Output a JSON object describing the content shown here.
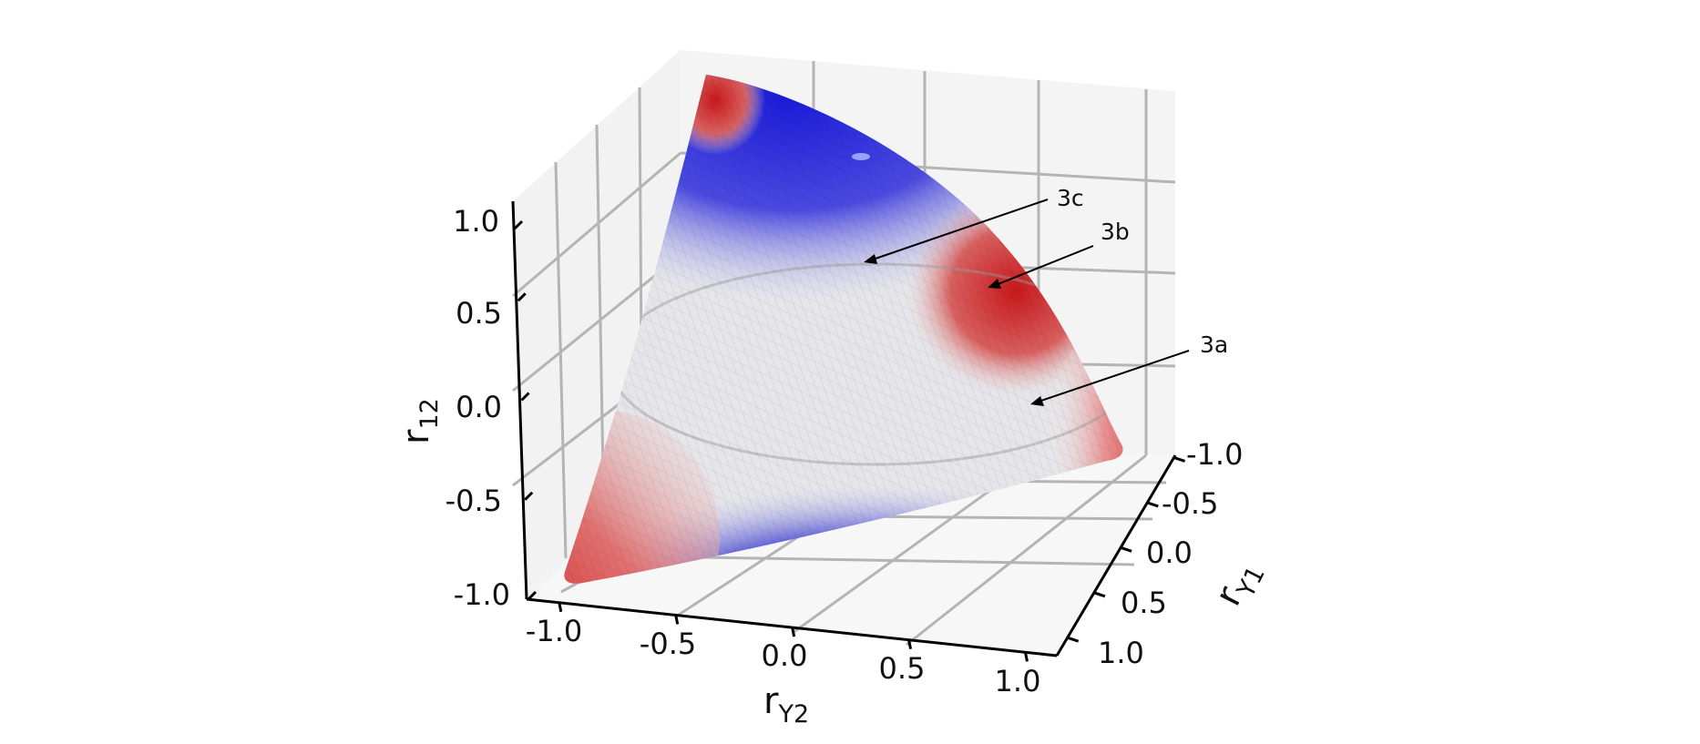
{
  "chart_data": {
    "type": "3d-surface",
    "title": "",
    "surface": "elliptope (boundary of valid 3×3 correlation matrices)",
    "axes": {
      "x": {
        "label": "r",
        "sub": "Y2",
        "ticks": [
          "-1.0",
          "-0.5",
          "0.0",
          "0.5",
          "1.0"
        ],
        "range": [
          -1,
          1
        ]
      },
      "y": {
        "label": "r",
        "sub": "Y1",
        "ticks": [
          "-1.0",
          "-0.5",
          "0.0",
          "0.5",
          "1.0"
        ],
        "range": [
          -1,
          1
        ]
      },
      "z": {
        "label": "r",
        "sub": "12",
        "ticks": [
          "1.0",
          "0.5",
          "0.0",
          "-0.5",
          "-1.0"
        ],
        "range": [
          -1,
          1
        ]
      }
    },
    "grid": true,
    "colormap": [
      "#d7191c",
      "#ffffff",
      "#1f1fd6"
    ],
    "annotations": [
      {
        "text": "3c"
      },
      {
        "text": "3b"
      },
      {
        "text": "3a"
      }
    ]
  }
}
